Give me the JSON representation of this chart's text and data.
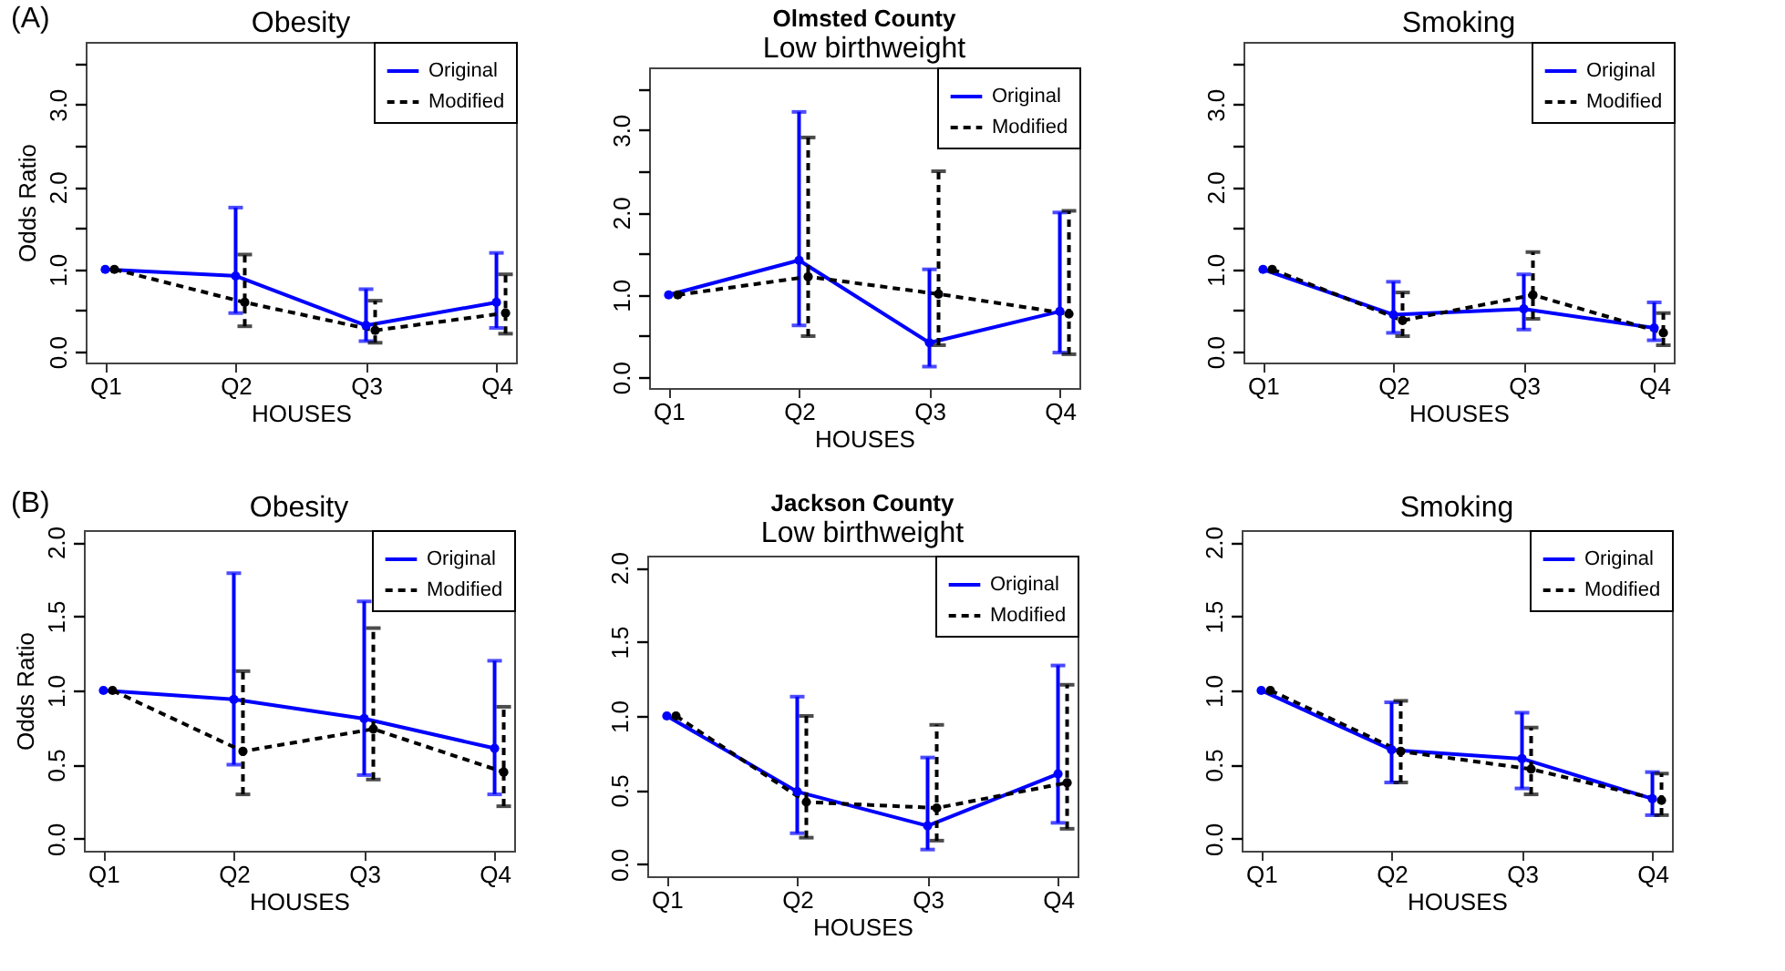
{
  "chart_data": [
    {
      "type": "line",
      "title": "Obesity",
      "xlabel": "HOUSES",
      "ylabel": "Odds Ratio",
      "annotations": [
        "(A)"
      ],
      "categories": [
        "Q1",
        "Q2",
        "Q3",
        "Q4"
      ],
      "ylim": [
        -0.13,
        3.76
      ],
      "yticks": [
        {
          "value": 0,
          "label": "0.0"
        },
        {
          "value": 0.5,
          "label": null
        },
        {
          "value": 1,
          "label": "1.0"
        },
        {
          "value": 1.5,
          "label": null
        },
        {
          "value": 2,
          "label": "2.0"
        },
        {
          "value": 2.5,
          "label": null
        },
        {
          "value": 3,
          "label": "3.0"
        },
        {
          "value": 3.5,
          "label": null
        }
      ],
      "legend": "top right",
      "marker": "circle",
      "series": [
        {
          "name": "Original",
          "color": "#0000ff",
          "line_style": "solid",
          "values": [
            1,
            0.92,
            0.32,
            0.6
          ],
          "errors": [
            null,
            [
              0.47,
              1.75
            ],
            [
              0.13,
              0.76
            ],
            [
              0.29,
              1.2
            ]
          ]
        },
        {
          "name": "Modified",
          "color": "#000000",
          "line_style": "dashed",
          "values": [
            1,
            0.6,
            0.26,
            0.47
          ],
          "errors": [
            null,
            [
              0.31,
              1.18
            ],
            [
              0.11,
              0.62
            ],
            [
              0.22,
              0.94
            ]
          ]
        }
      ]
    },
    {
      "type": "line",
      "title": "Olmsted County",
      "subtitle": "Low birthweight",
      "xlabel": "HOUSES",
      "categories": [
        "Q1",
        "Q2",
        "Q3",
        "Q4"
      ],
      "ylim": [
        -0.13,
        3.76
      ],
      "yticks": [
        {
          "value": 0,
          "label": "0.0"
        },
        {
          "value": 0.5,
          "label": null
        },
        {
          "value": 1,
          "label": "1.0"
        },
        {
          "value": 1.5,
          "label": null
        },
        {
          "value": 2,
          "label": "2.0"
        },
        {
          "value": 2.5,
          "label": null
        },
        {
          "value": 3,
          "label": "3.0"
        },
        {
          "value": 3.5,
          "label": null
        }
      ],
      "legend": "top right",
      "marker": "circle",
      "series": [
        {
          "name": "Original",
          "color": "#0000ff",
          "line_style": "solid",
          "values": [
            1,
            1.42,
            0.42,
            0.8
          ],
          "errors": [
            null,
            [
              0.63,
              3.22
            ],
            [
              0.13,
              1.31
            ],
            [
              0.3,
              2.0
            ]
          ]
        },
        {
          "name": "Modified",
          "color": "#000000",
          "line_style": "dashed",
          "values": [
            1,
            1.22,
            1.01,
            0.77
          ],
          "errors": [
            null,
            [
              0.5,
              2.91
            ],
            [
              0.39,
              2.5
            ],
            [
              0.28,
              2.02
            ]
          ]
        }
      ]
    },
    {
      "type": "line",
      "title": "Smoking",
      "xlabel": "HOUSES",
      "categories": [
        "Q1",
        "Q2",
        "Q3",
        "Q4"
      ],
      "ylim": [
        -0.13,
        3.76
      ],
      "yticks": [
        {
          "value": 0,
          "label": "0.0"
        },
        {
          "value": 0.5,
          "label": null
        },
        {
          "value": 1,
          "label": "1.0"
        },
        {
          "value": 1.5,
          "label": null
        },
        {
          "value": 2,
          "label": "2.0"
        },
        {
          "value": 2.5,
          "label": null
        },
        {
          "value": 3,
          "label": "3.0"
        },
        {
          "value": 3.5,
          "label": null
        }
      ],
      "legend": "top right",
      "marker": "circle",
      "series": [
        {
          "name": "Original",
          "color": "#0000ff",
          "line_style": "solid",
          "values": [
            1,
            0.45,
            0.52,
            0.29
          ],
          "errors": [
            null,
            [
              0.23,
              0.85
            ],
            [
              0.27,
              0.94
            ],
            [
              0.14,
              0.6
            ]
          ]
        },
        {
          "name": "Modified",
          "color": "#000000",
          "line_style": "dashed",
          "values": [
            1,
            0.38,
            0.69,
            0.23
          ],
          "errors": [
            null,
            [
              0.19,
              0.72
            ],
            [
              0.4,
              1.21
            ],
            [
              0.08,
              0.47
            ]
          ]
        }
      ]
    },
    {
      "type": "line",
      "title": "Obesity",
      "xlabel": "HOUSES",
      "ylabel": "Odds Ratio",
      "annotations": [
        "(B)"
      ],
      "categories": [
        "Q1",
        "Q2",
        "Q3",
        "Q4"
      ],
      "ylim": [
        -0.08,
        2.08
      ],
      "yticks": [
        {
          "value": 0,
          "label": "0.0"
        },
        {
          "value": 0.5,
          "label": "0.5"
        },
        {
          "value": 1,
          "label": "1.0"
        },
        {
          "value": 1.5,
          "label": "1.5"
        },
        {
          "value": 2,
          "label": "2.0"
        }
      ],
      "legend": "top right",
      "marker": "circle",
      "series": [
        {
          "name": "Original",
          "color": "#0000ff",
          "line_style": "solid",
          "values": [
            1,
            0.94,
            0.81,
            0.61
          ],
          "errors": [
            null,
            [
              0.5,
              1.79
            ],
            [
              0.43,
              1.6
            ],
            [
              0.3,
              1.2
            ]
          ]
        },
        {
          "name": "Modified",
          "color": "#000000",
          "line_style": "dashed",
          "values": [
            1,
            0.59,
            0.74,
            0.45
          ],
          "errors": [
            null,
            [
              0.3,
              1.13
            ],
            [
              0.4,
              1.42
            ],
            [
              0.22,
              0.89
            ]
          ]
        }
      ]
    },
    {
      "type": "line",
      "title": "Jackson County",
      "subtitle": "Low birthweight",
      "xlabel": "HOUSES",
      "categories": [
        "Q1",
        "Q2",
        "Q3",
        "Q4"
      ],
      "ylim": [
        -0.08,
        2.08
      ],
      "yticks": [
        {
          "value": 0,
          "label": "0.0"
        },
        {
          "value": 0.5,
          "label": "0.5"
        },
        {
          "value": 1,
          "label": "1.0"
        },
        {
          "value": 1.5,
          "label": "1.5"
        },
        {
          "value": 2,
          "label": "2.0"
        }
      ],
      "legend": "top right",
      "marker": "circle",
      "series": [
        {
          "name": "Original",
          "color": "#0000ff",
          "line_style": "solid",
          "values": [
            1,
            0.49,
            0.26,
            0.61
          ],
          "errors": [
            null,
            [
              0.21,
              1.13
            ],
            [
              0.1,
              0.72
            ],
            [
              0.28,
              1.34
            ]
          ]
        },
        {
          "name": "Modified",
          "color": "#000000",
          "line_style": "dashed",
          "values": [
            1,
            0.42,
            0.38,
            0.55
          ],
          "errors": [
            null,
            [
              0.18,
              1.0
            ],
            [
              0.16,
              0.94
            ],
            [
              0.24,
              1.21
            ]
          ]
        }
      ]
    },
    {
      "type": "line",
      "title": "Smoking",
      "xlabel": "HOUSES",
      "categories": [
        "Q1",
        "Q2",
        "Q3",
        "Q4"
      ],
      "ylim": [
        -0.08,
        2.08
      ],
      "yticks": [
        {
          "value": 0,
          "label": "0.0"
        },
        {
          "value": 0.5,
          "label": "0.5"
        },
        {
          "value": 1,
          "label": "1.0"
        },
        {
          "value": 1.5,
          "label": "1.5"
        },
        {
          "value": 2,
          "label": "2.0"
        }
      ],
      "legend": "top right",
      "marker": "circle",
      "series": [
        {
          "name": "Original",
          "color": "#0000ff",
          "line_style": "solid",
          "values": [
            1,
            0.6,
            0.54,
            0.27
          ],
          "errors": [
            null,
            [
              0.38,
              0.92
            ],
            [
              0.34,
              0.85
            ],
            [
              0.16,
              0.45
            ]
          ]
        },
        {
          "name": "Modified",
          "color": "#000000",
          "line_style": "dashed",
          "values": [
            1,
            0.59,
            0.47,
            0.26
          ],
          "errors": [
            null,
            [
              0.38,
              0.93
            ],
            [
              0.3,
              0.75
            ],
            [
              0.16,
              0.44
            ]
          ]
        }
      ]
    }
  ]
}
